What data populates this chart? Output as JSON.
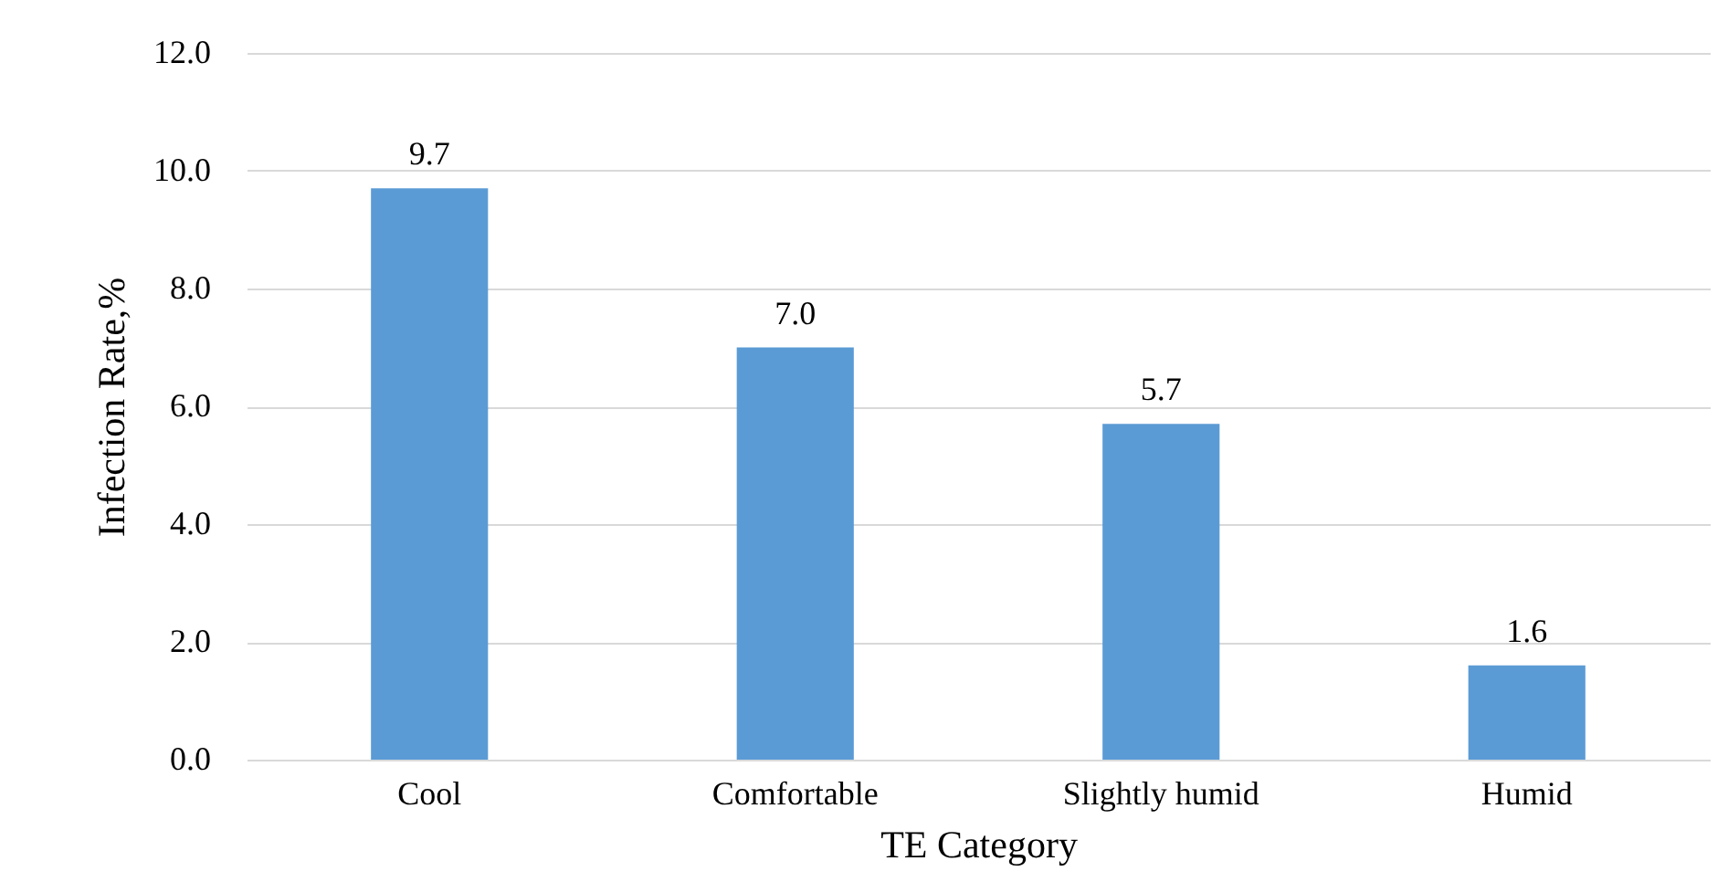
{
  "chart_data": {
    "type": "bar",
    "xlabel": "TE Category",
    "ylabel": "Infection Rate,%",
    "categories": [
      "Cool",
      "Comfortable",
      "Slightly humid",
      "Humid"
    ],
    "values": [
      9.7,
      7.0,
      5.7,
      1.6
    ],
    "value_labels": [
      "9.7",
      "7.0",
      "5.7",
      "1.6"
    ],
    "color": "#5b9bd5",
    "ylim": [
      0,
      12
    ],
    "yticks": [
      {
        "value": 0,
        "label": "0.0"
      },
      {
        "value": 2,
        "label": "2.0"
      },
      {
        "value": 4,
        "label": "4.0"
      },
      {
        "value": 6,
        "label": "6.0"
      },
      {
        "value": 8,
        "label": "8.0"
      },
      {
        "value": 10,
        "label": "10.0"
      },
      {
        "value": 12,
        "label": "12.0"
      }
    ],
    "grid": "y"
  }
}
